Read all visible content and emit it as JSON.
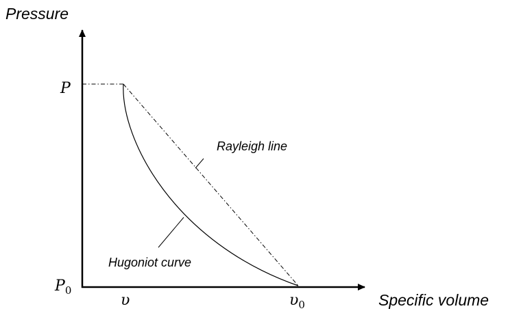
{
  "axes": {
    "y_label": "Pressure",
    "x_label": "Specific volume"
  },
  "y_marks": [
    {
      "text": "P"
    },
    {
      "text": "P",
      "sub": "0"
    }
  ],
  "x_marks": [
    {
      "text": "υ"
    },
    {
      "text": "υ",
      "sub": "0"
    }
  ],
  "curves": {
    "rayleigh": "Rayleigh line",
    "hugoniot": "Hugoniot curve"
  }
}
